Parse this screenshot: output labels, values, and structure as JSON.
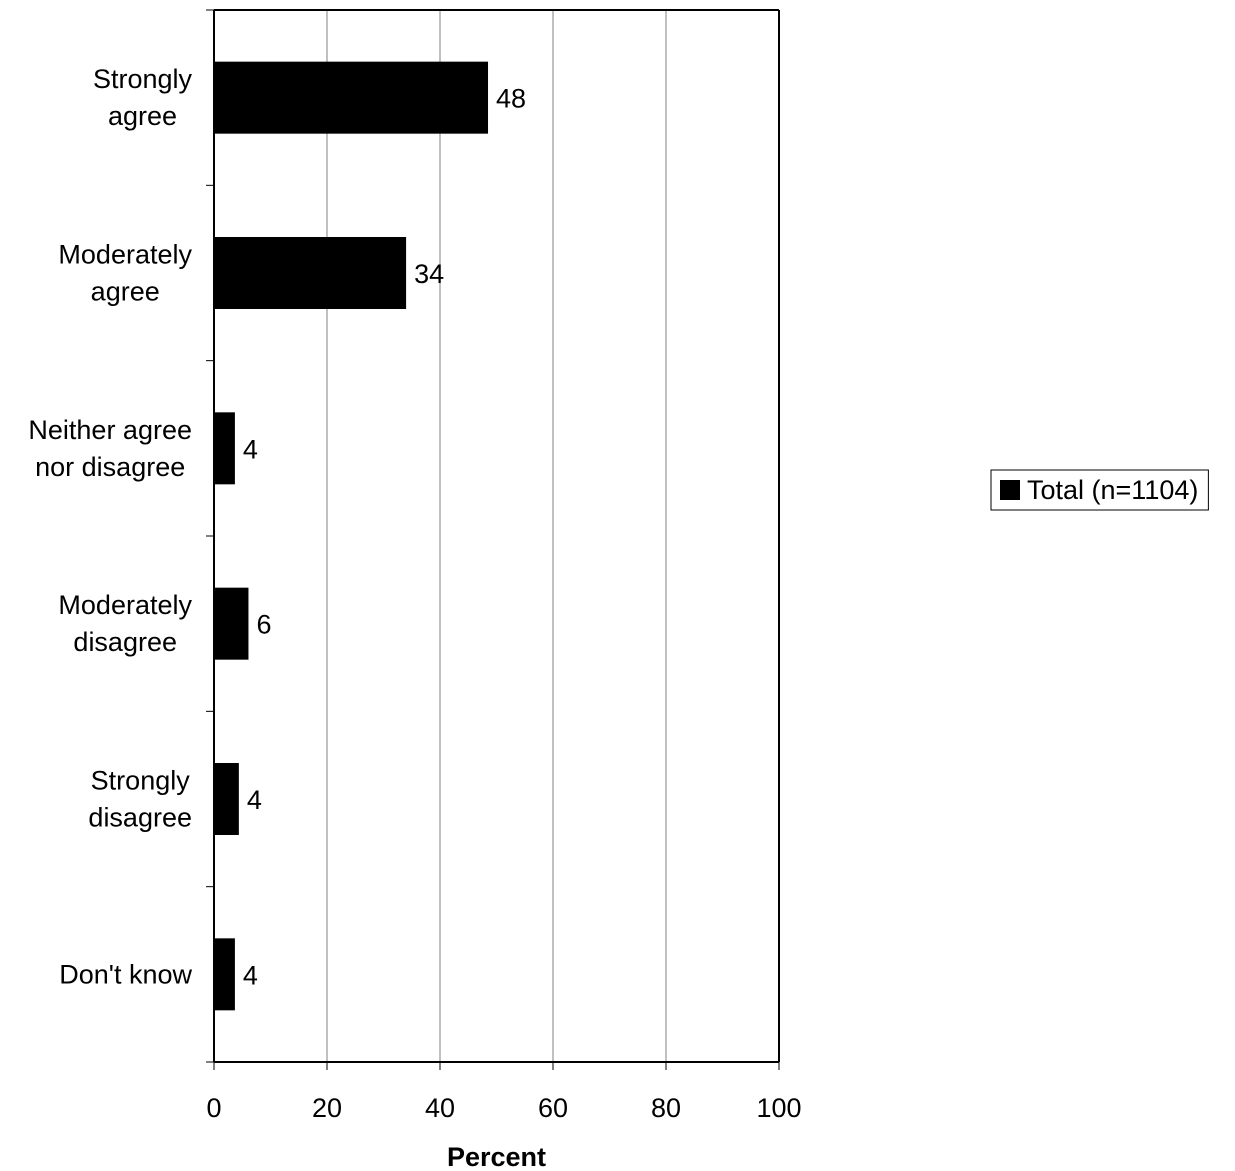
{
  "chart_data": {
    "type": "bar",
    "orientation": "horizontal",
    "categories": [
      [
        "Strongly",
        "agree"
      ],
      [
        "Moderately",
        "agree"
      ],
      [
        "Neither agree",
        "nor disagree"
      ],
      [
        "Moderately",
        "disagree"
      ],
      [
        "Strongly",
        "disagree"
      ],
      [
        "Don't know"
      ]
    ],
    "series": [
      {
        "name": "Total (n=1104)",
        "color": "#000000",
        "values": [
          48.5,
          34,
          3.7,
          6.1,
          4.4,
          3.7
        ],
        "labels": [
          "48",
          "34",
          "4",
          "6",
          "4",
          "4"
        ]
      }
    ],
    "xlabel": "Percent",
    "xlim": [
      0,
      100
    ],
    "xticks": [
      0,
      20,
      40,
      60,
      80,
      100
    ],
    "xtick_labels": [
      "0",
      "20",
      "40",
      "60",
      "80",
      "100"
    ],
    "grid": "vertical",
    "legend_position": "right"
  }
}
